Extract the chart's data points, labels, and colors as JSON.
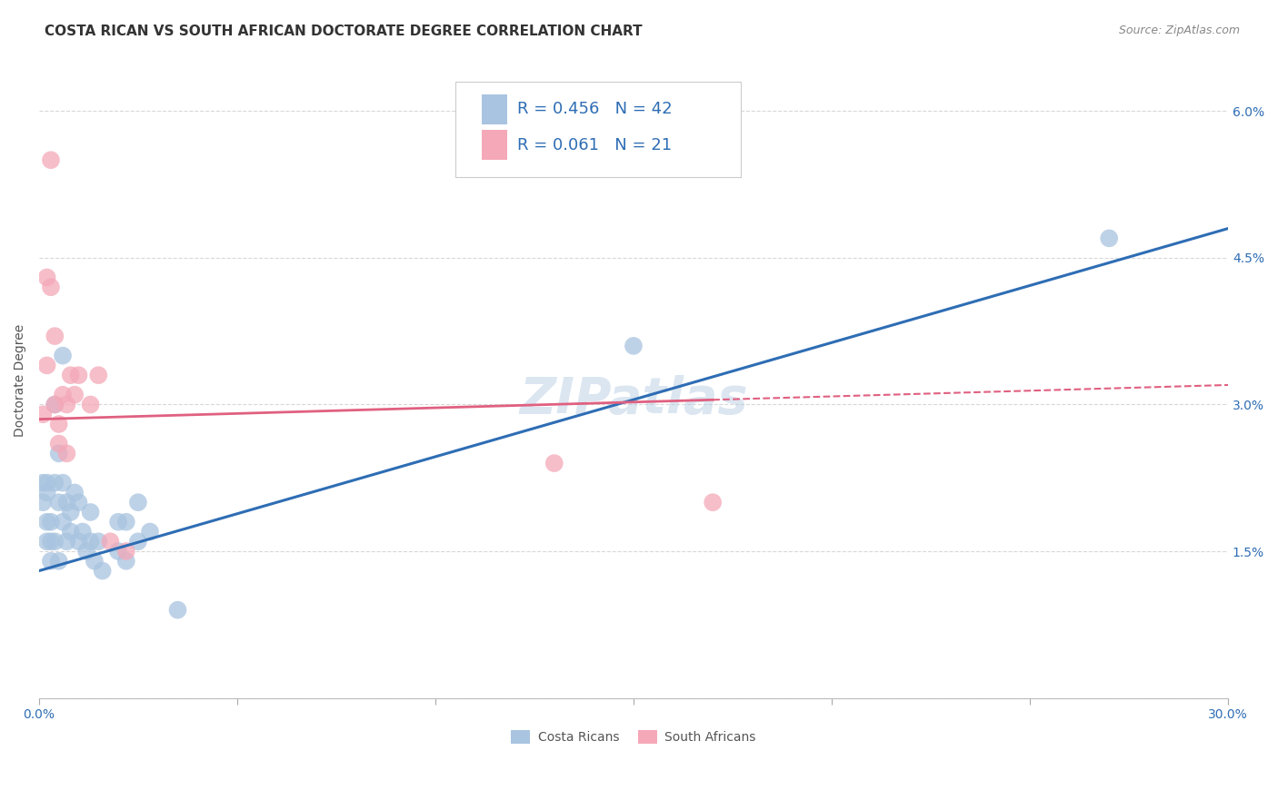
{
  "title": "COSTA RICAN VS SOUTH AFRICAN DOCTORATE DEGREE CORRELATION CHART",
  "source": "Source: ZipAtlas.com",
  "ylabel": "Doctorate Degree",
  "xlim": [
    0.0,
    0.3
  ],
  "ylim": [
    0.0,
    0.065
  ],
  "xticks": [
    0.0,
    0.05,
    0.1,
    0.15,
    0.2,
    0.25,
    0.3
  ],
  "yticks": [
    0.0,
    0.015,
    0.03,
    0.045,
    0.06
  ],
  "yticklabels": [
    "",
    "1.5%",
    "3.0%",
    "4.5%",
    "6.0%"
  ],
  "r_blue": 0.456,
  "n_blue": 42,
  "r_pink": 0.061,
  "n_pink": 21,
  "legend_label_blue": "Costa Ricans",
  "legend_label_pink": "South Africans",
  "blue_color": "#a8c4e0",
  "pink_color": "#f4a8b8",
  "line_blue_color": "#2e6db4",
  "line_pink_color": "#e06080",
  "legend_text_color": "#2e6db4",
  "watermark": "ZIPatlas",
  "blue_points": [
    [
      0.001,
      0.022
    ],
    [
      0.001,
      0.02
    ],
    [
      0.002,
      0.021
    ],
    [
      0.002,
      0.018
    ],
    [
      0.002,
      0.022
    ],
    [
      0.002,
      0.016
    ],
    [
      0.003,
      0.014
    ],
    [
      0.003,
      0.018
    ],
    [
      0.003,
      0.016
    ],
    [
      0.004,
      0.022
    ],
    [
      0.004,
      0.03
    ],
    [
      0.004,
      0.016
    ],
    [
      0.005,
      0.025
    ],
    [
      0.005,
      0.02
    ],
    [
      0.005,
      0.014
    ],
    [
      0.006,
      0.035
    ],
    [
      0.006,
      0.022
    ],
    [
      0.006,
      0.018
    ],
    [
      0.007,
      0.02
    ],
    [
      0.007,
      0.016
    ],
    [
      0.008,
      0.019
    ],
    [
      0.008,
      0.017
    ],
    [
      0.009,
      0.021
    ],
    [
      0.01,
      0.02
    ],
    [
      0.01,
      0.016
    ],
    [
      0.011,
      0.017
    ],
    [
      0.012,
      0.015
    ],
    [
      0.013,
      0.019
    ],
    [
      0.013,
      0.016
    ],
    [
      0.014,
      0.014
    ],
    [
      0.015,
      0.016
    ],
    [
      0.016,
      0.013
    ],
    [
      0.02,
      0.018
    ],
    [
      0.02,
      0.015
    ],
    [
      0.022,
      0.018
    ],
    [
      0.022,
      0.014
    ],
    [
      0.025,
      0.02
    ],
    [
      0.025,
      0.016
    ],
    [
      0.028,
      0.017
    ],
    [
      0.15,
      0.036
    ],
    [
      0.27,
      0.047
    ],
    [
      0.035,
      0.009
    ]
  ],
  "pink_points": [
    [
      0.001,
      0.029
    ],
    [
      0.002,
      0.043
    ],
    [
      0.002,
      0.034
    ],
    [
      0.003,
      0.042
    ],
    [
      0.003,
      0.055
    ],
    [
      0.004,
      0.037
    ],
    [
      0.004,
      0.03
    ],
    [
      0.005,
      0.028
    ],
    [
      0.005,
      0.026
    ],
    [
      0.006,
      0.031
    ],
    [
      0.007,
      0.03
    ],
    [
      0.007,
      0.025
    ],
    [
      0.008,
      0.033
    ],
    [
      0.009,
      0.031
    ],
    [
      0.01,
      0.033
    ],
    [
      0.013,
      0.03
    ],
    [
      0.015,
      0.033
    ],
    [
      0.018,
      0.016
    ],
    [
      0.022,
      0.015
    ],
    [
      0.13,
      0.024
    ],
    [
      0.17,
      0.02
    ]
  ],
  "title_fontsize": 11,
  "source_fontsize": 9,
  "axis_label_fontsize": 10,
  "tick_fontsize": 10,
  "legend_fontsize": 13,
  "watermark_fontsize": 40,
  "background_color": "#ffffff",
  "grid_color": "#d8d8d8"
}
